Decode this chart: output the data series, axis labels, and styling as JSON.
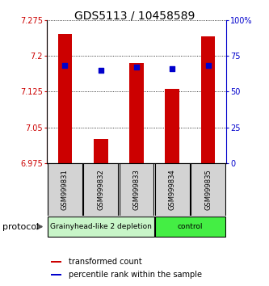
{
  "title": "GDS5113 / 10458589",
  "samples": [
    "GSM999831",
    "GSM999832",
    "GSM999833",
    "GSM999834",
    "GSM999835"
  ],
  "bar_values": [
    7.245,
    7.025,
    7.185,
    7.13,
    7.24
  ],
  "percentile_values": [
    68,
    65,
    67,
    66,
    68
  ],
  "ymin": 6.975,
  "ymax": 7.275,
  "yticks": [
    6.975,
    7.05,
    7.125,
    7.2,
    7.275
  ],
  "ytick_labels": [
    "6.975",
    "7.05",
    "7.125",
    "7.2",
    "7.275"
  ],
  "y2min": 0,
  "y2max": 100,
  "y2ticks": [
    0,
    25,
    50,
    75,
    100
  ],
  "y2tick_labels": [
    "0",
    "25",
    "50",
    "75",
    "100%"
  ],
  "bar_color": "#cc0000",
  "percentile_color": "#0000cc",
  "groups": [
    {
      "label": "Grainyhead-like 2 depletion",
      "n_samples": 3,
      "color": "#c8f5c8"
    },
    {
      "label": "control",
      "n_samples": 2,
      "color": "#44ee44"
    }
  ],
  "protocol_label": "protocol",
  "legend_bar_label": "transformed count",
  "legend_pct_label": "percentile rank within the sample",
  "title_fontsize": 10,
  "tick_fontsize": 7,
  "label_fontsize": 8,
  "bar_width": 0.4,
  "bg_color": "#ffffff",
  "plot_bg": "#ffffff",
  "grid_color": "#000000"
}
